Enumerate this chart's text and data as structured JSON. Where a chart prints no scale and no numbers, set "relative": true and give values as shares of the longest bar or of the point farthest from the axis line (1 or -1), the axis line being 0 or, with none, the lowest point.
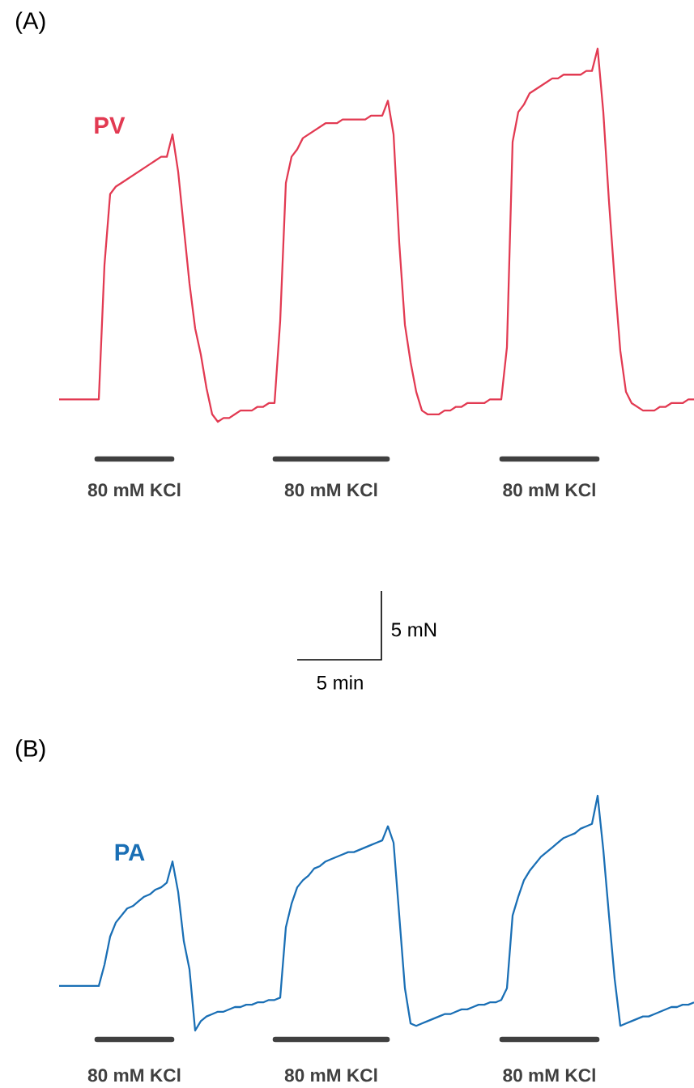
{
  "chart_data": [
    {
      "type": "line",
      "title": "(A)",
      "relative": true,
      "categories": [
        null,
        null,
        null,
        null,
        null,
        null,
        null,
        null,
        null,
        null,
        null,
        null,
        null,
        null,
        null,
        null,
        null,
        null,
        null,
        null,
        null,
        null,
        null,
        null,
        null,
        null,
        null,
        null,
        null,
        null,
        null,
        null,
        null,
        null,
        null,
        null,
        null,
        null,
        null,
        null,
        null,
        null,
        null,
        null,
        null,
        null,
        null,
        null,
        null,
        null,
        null,
        null,
        null,
        null,
        null,
        null,
        null,
        null,
        null,
        null,
        null,
        null,
        null,
        null,
        null,
        null,
        null,
        null,
        null,
        null,
        null,
        null,
        null,
        null,
        null,
        null,
        null,
        null,
        null,
        null,
        null,
        null,
        null,
        null,
        null,
        null,
        null,
        null,
        null,
        null,
        null,
        null,
        null,
        null,
        null,
        null,
        null,
        null,
        null,
        null,
        null,
        null,
        null,
        null,
        null,
        null,
        null,
        null,
        null,
        null,
        null,
        null,
        null
      ],
      "series": [
        {
          "name": "PV",
          "color": "#e23a52",
          "values": [
            0.06,
            0.06,
            0.06,
            0.06,
            0.06,
            0.06,
            0.06,
            0.06,
            0.42,
            0.61,
            0.63,
            0.64,
            0.65,
            0.66,
            0.67,
            0.68,
            0.69,
            0.7,
            0.71,
            0.71,
            0.77,
            0.67,
            0.52,
            0.37,
            0.25,
            0.18,
            0.09,
            0.02,
            0.0,
            0.01,
            0.01,
            0.02,
            0.03,
            0.03,
            0.03,
            0.04,
            0.04,
            0.05,
            0.05,
            0.27,
            0.64,
            0.71,
            0.73,
            0.76,
            0.77,
            0.78,
            0.79,
            0.8,
            0.8,
            0.8,
            0.81,
            0.81,
            0.81,
            0.81,
            0.81,
            0.82,
            0.82,
            0.82,
            0.86,
            0.77,
            0.48,
            0.26,
            0.16,
            0.08,
            0.03,
            0.02,
            0.02,
            0.02,
            0.03,
            0.03,
            0.04,
            0.04,
            0.05,
            0.05,
            0.05,
            0.05,
            0.06,
            0.06,
            0.06,
            0.2,
            0.75,
            0.83,
            0.85,
            0.88,
            0.89,
            0.9,
            0.91,
            0.92,
            0.92,
            0.93,
            0.93,
            0.93,
            0.93,
            0.94,
            0.94,
            1.0,
            0.83,
            0.59,
            0.38,
            0.19,
            0.08,
            0.05,
            0.04,
            0.03,
            0.03,
            0.03,
            0.04,
            0.04,
            0.05,
            0.05,
            0.05,
            0.06,
            0.06
          ]
        }
      ],
      "annotations": [
        "80 mM KCl",
        "80 mM KCl",
        "80 mM KCl",
        "5 mN",
        "5 min"
      ]
    },
    {
      "type": "line",
      "title": "(B)",
      "relative": true,
      "categories": [
        null,
        null,
        null,
        null,
        null,
        null,
        null,
        null,
        null,
        null,
        null,
        null,
        null,
        null,
        null,
        null,
        null,
        null,
        null,
        null,
        null,
        null,
        null,
        null,
        null,
        null,
        null,
        null,
        null,
        null,
        null,
        null,
        null,
        null,
        null,
        null,
        null,
        null,
        null,
        null,
        null,
        null,
        null,
        null,
        null,
        null,
        null,
        null,
        null,
        null,
        null,
        null,
        null,
        null,
        null,
        null,
        null,
        null,
        null,
        null,
        null,
        null,
        null,
        null,
        null,
        null,
        null,
        null,
        null,
        null,
        null,
        null,
        null,
        null,
        null,
        null,
        null,
        null,
        null,
        null,
        null,
        null,
        null,
        null,
        null,
        null,
        null,
        null,
        null,
        null,
        null,
        null,
        null,
        null,
        null,
        null,
        null,
        null,
        null,
        null,
        null,
        null,
        null,
        null,
        null,
        null,
        null,
        null,
        null,
        null,
        null,
        null,
        null
      ],
      "series": [
        {
          "name": "PA",
          "color": "#1a6fb5",
          "values": [
            0.19,
            0.19,
            0.19,
            0.19,
            0.19,
            0.19,
            0.19,
            0.19,
            0.28,
            0.4,
            0.46,
            0.49,
            0.52,
            0.53,
            0.55,
            0.57,
            0.58,
            0.6,
            0.61,
            0.63,
            0.72,
            0.59,
            0.38,
            0.26,
            0.0,
            0.04,
            0.06,
            0.07,
            0.08,
            0.08,
            0.09,
            0.1,
            0.1,
            0.11,
            0.11,
            0.12,
            0.12,
            0.13,
            0.13,
            0.14,
            0.44,
            0.54,
            0.61,
            0.64,
            0.66,
            0.69,
            0.7,
            0.72,
            0.73,
            0.74,
            0.75,
            0.76,
            0.76,
            0.77,
            0.78,
            0.79,
            0.8,
            0.81,
            0.87,
            0.8,
            0.49,
            0.18,
            0.03,
            0.02,
            0.03,
            0.04,
            0.05,
            0.06,
            0.07,
            0.07,
            0.08,
            0.09,
            0.09,
            0.1,
            0.11,
            0.11,
            0.12,
            0.12,
            0.13,
            0.18,
            0.49,
            0.57,
            0.64,
            0.68,
            0.71,
            0.74,
            0.76,
            0.78,
            0.8,
            0.82,
            0.83,
            0.84,
            0.86,
            0.87,
            0.88,
            1.0,
            0.77,
            0.49,
            0.22,
            0.02,
            0.03,
            0.04,
            0.05,
            0.06,
            0.06,
            0.07,
            0.08,
            0.09,
            0.1,
            0.1,
            0.11,
            0.11,
            0.12
          ]
        }
      ],
      "annotations": [
        "80 mM KCl",
        "80 mM KCl",
        "80 mM KCl"
      ]
    }
  ]
}
